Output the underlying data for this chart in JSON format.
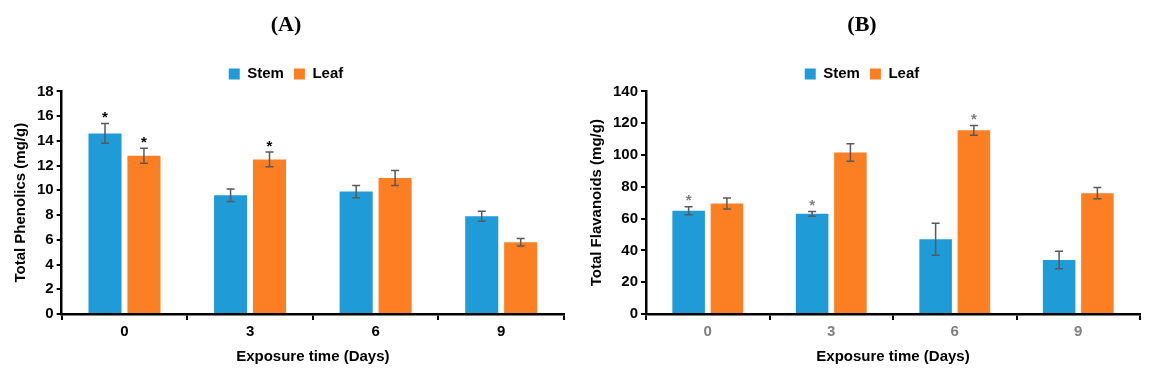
{
  "chart_data": [
    {
      "type": "bar",
      "title": "(A)",
      "xlabel": "Exposure time (Days)",
      "ylabel": "Total Phenolics (mg/g)",
      "categories": [
        "0",
        "3",
        "6",
        "9"
      ],
      "series": [
        {
          "name": "Stem",
          "color": "#1f9bd7",
          "values": [
            14.6,
            9.6,
            9.9,
            7.9
          ],
          "errors": [
            0.8,
            0.5,
            0.5,
            0.4
          ]
        },
        {
          "name": "Leaf",
          "color": "#fd7f23",
          "values": [
            12.8,
            12.5,
            11.0,
            5.8
          ],
          "errors": [
            0.6,
            0.6,
            0.6,
            0.3
          ]
        }
      ],
      "ylim": [
        0,
        18
      ],
      "yticks": [
        0,
        2,
        4,
        6,
        8,
        10,
        12,
        14,
        16,
        18
      ],
      "grid": false,
      "legend": "top",
      "annotations": [
        {
          "text": "*",
          "x": "0",
          "y": 14.6
        },
        {
          "text": "*",
          "x": "0",
          "y": 12.8
        },
        {
          "text": "*",
          "x": "3",
          "y": 12.5
        }
      ]
    },
    {
      "type": "bar",
      "title": "(B)",
      "xlabel": "Exposure time (Days)",
      "ylabel": "Total Flavanoids (mg/g)",
      "categories": [
        "0",
        "3",
        "6",
        "9"
      ],
      "series": [
        {
          "name": "Stem",
          "color": "#1f9bd7",
          "values": [
            65,
            63,
            47,
            34
          ],
          "errors": [
            2.5,
            1.5,
            10,
            5.5
          ]
        },
        {
          "name": "Leaf",
          "color": "#fd7f23",
          "values": [
            69.5,
            101.5,
            115.5,
            76
          ],
          "errors": [
            3.5,
            5.5,
            3,
            3.5
          ]
        }
      ],
      "ylim": [
        0,
        140
      ],
      "yticks": [
        0,
        20,
        40,
        60,
        80,
        100,
        120,
        140
      ],
      "grid": false,
      "legend": "top",
      "annotations": [
        {
          "text": "*",
          "x": "0",
          "y": 65
        },
        {
          "text": "*",
          "x": "3",
          "y": 63
        },
        {
          "text": "*",
          "x": "6",
          "y": 115.5
        }
      ]
    }
  ]
}
